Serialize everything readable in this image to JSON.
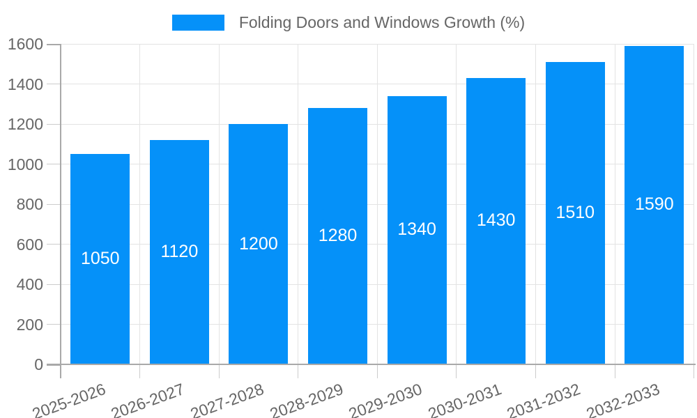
{
  "legend": {
    "label": "Folding Doors and Windows Growth (%)",
    "position": "top"
  },
  "chart_data": {
    "type": "bar",
    "title": "",
    "xlabel": "",
    "ylabel": "",
    "categories": [
      "2025-2026",
      "2026-2027",
      "2027-2028",
      "2028-2029",
      "2029-2030",
      "2030-2031",
      "2031-2032",
      "2032-2033"
    ],
    "series": [
      {
        "name": "Folding Doors and Windows Growth (%)",
        "values": [
          1050,
          1120,
          1200,
          1280,
          1340,
          1430,
          1510,
          1590
        ]
      }
    ],
    "value_labels": [
      "1050",
      "1120",
      "1200",
      "1280",
      "1340",
      "1430",
      "1510",
      "1590"
    ],
    "value_label_position": "inside-center",
    "ylim": [
      0,
      1600
    ],
    "ytick_interval": 200,
    "yticks": [
      "0",
      "200",
      "400",
      "600",
      "800",
      "1000",
      "1200",
      "1400",
      "1600"
    ],
    "grid": true,
    "legend_position": "top-center",
    "x_label_rotation_deg": -20
  },
  "colors": {
    "bar": "#0591f9",
    "bar_value_text": "#ffffff",
    "axis_text": "#666666",
    "legend_text": "#666666",
    "gridline": "#e3e3e3",
    "axis_line": "#a9a9a9",
    "minor_tick": "#cccccc",
    "background": "#ffffff"
  }
}
